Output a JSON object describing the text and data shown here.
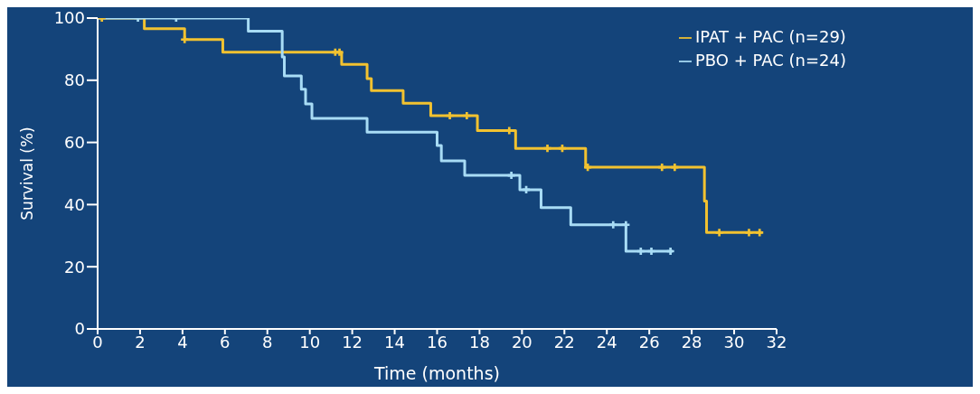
{
  "chart_data": {
    "type": "step",
    "xlabel": "Time (months)",
    "ylabel": "Survival (%)",
    "xlim": [
      0,
      32
    ],
    "xticks": [
      0,
      2,
      4,
      6,
      8,
      10,
      12,
      14,
      16,
      18,
      20,
      22,
      24,
      26,
      28,
      30,
      32
    ],
    "ylim": [
      0,
      100
    ],
    "yticks": [
      0,
      20,
      40,
      60,
      80,
      100
    ],
    "grid": false,
    "legend": "top right",
    "marker": "none",
    "line_style": "solid",
    "series": [
      {
        "name": "IPAT + PAC (n=29)",
        "color": "#f2c230",
        "x": [
          0,
          2.2,
          4.1,
          5.9,
          11.5,
          12.7,
          12.9,
          14.4,
          15.7,
          17.9,
          19.7,
          23,
          28.6,
          28.7,
          31.3
        ],
        "values": [
          100,
          96.6,
          93.1,
          89,
          85.1,
          80.5,
          76.7,
          72.6,
          68.6,
          63.8,
          58.1,
          52,
          41.1,
          31,
          31
        ]
      },
      {
        "name": "PBO + PAC (n=24)",
        "color": "#a8dcf5",
        "x": [
          0,
          7.1,
          8.7,
          8.8,
          9.6,
          9.8,
          10.1,
          12.7,
          16,
          16.2,
          17.3,
          19.9,
          20.9,
          22.3,
          24.9,
          27.1
        ],
        "values": [
          100,
          95.8,
          87.5,
          81.4,
          77.1,
          72.4,
          67.7,
          63.3,
          59,
          54.1,
          49.4,
          44.8,
          39,
          33.5,
          25,
          25
        ]
      },
      {
        "type": "scatter",
        "marker": "cross",
        "color": "#f2c230",
        "x": [
          0.2,
          4.1,
          11.2,
          11.4,
          16.6,
          17.4,
          19.4,
          21.2,
          21.9,
          23.1,
          26.6,
          27.2,
          29.3,
          30.7,
          31.2
        ],
        "values": [
          100,
          93.1,
          89,
          89,
          68.6,
          68.6,
          63.8,
          58.1,
          58.1,
          52,
          52,
          52,
          31,
          31,
          31
        ]
      },
      {
        "type": "scatter",
        "marker": "cross",
        "color": "#a8dcf5",
        "x": [
          1.9,
          3.7,
          19.5,
          20.2,
          24.3,
          24.9,
          25.6,
          26.1,
          27
        ],
        "values": [
          100,
          100,
          49.4,
          44.8,
          33.5,
          33.5,
          25,
          25,
          25
        ]
      }
    ]
  }
}
